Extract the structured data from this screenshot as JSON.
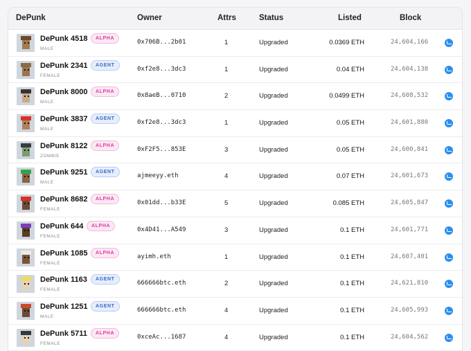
{
  "headers": {
    "punk": "DePunk",
    "owner": "Owner",
    "attrs": "Attrs",
    "status": "Status",
    "listed": "Listed",
    "block": "Block"
  },
  "badge_colors": {
    "alpha": "#d83ea1",
    "agent": "#3868c9"
  },
  "rows": [
    {
      "name": "DePunk 4518",
      "badge": "ALPHA",
      "gender": "MALE",
      "owner": "0x706B...2b01",
      "attrs": "1",
      "status": "Upgraded",
      "listed": "0.0369 ETH",
      "block": "24,604,166",
      "skin": "#a27c52",
      "hair": "#6b4a2b",
      "bg": "#cfd6dd"
    },
    {
      "name": "DePunk 2341",
      "badge": "AGENT",
      "gender": "FEMALE",
      "owner": "0xf2e8...3dc3",
      "attrs": "1",
      "status": "Upgraded",
      "listed": "0.04 ETH",
      "block": "24,604,138",
      "skin": "#9b7450",
      "hair": "#8a6a46",
      "bg": "#cfd6dd"
    },
    {
      "name": "DePunk 8000",
      "badge": "ALPHA",
      "gender": "MALE",
      "owner": "0x8aeB...0710",
      "attrs": "2",
      "status": "Upgraded",
      "listed": "0.0499 ETH",
      "block": "24,608,532",
      "skin": "#c9ab8a",
      "hair": "#333333",
      "bg": "#cfd6dd"
    },
    {
      "name": "DePunk 3837",
      "badge": "AGENT",
      "gender": "MALE",
      "owner": "0xf2e8...3dc3",
      "attrs": "1",
      "status": "Upgraded",
      "listed": "0.05 ETH",
      "block": "24,601,880",
      "skin": "#b0805a",
      "hair": "#d8322a",
      "bg": "#cfd6dd"
    },
    {
      "name": "DePunk 8122",
      "badge": "ALPHA",
      "gender": "ZOMBIE",
      "owner": "0xF2F5...853E",
      "attrs": "3",
      "status": "Upgraded",
      "listed": "0.05 ETH",
      "block": "24,600,841",
      "skin": "#7d9b74",
      "hair": "#3b3b3b",
      "bg": "#cfd6dd"
    },
    {
      "name": "DePunk 9251",
      "badge": "AGENT",
      "gender": "MALE",
      "owner": "ajmeeyy.eth",
      "attrs": "4",
      "status": "Upgraded",
      "listed": "0.07 ETH",
      "block": "24,601,673",
      "skin": "#8a6440",
      "hair": "#2fa54a",
      "bg": "#cfd6dd"
    },
    {
      "name": "DePunk 8682",
      "badge": "ALPHA",
      "gender": "FEMALE",
      "owner": "0x01dd...b33E",
      "attrs": "5",
      "status": "Upgraded",
      "listed": "0.085 ETH",
      "block": "24,605,847",
      "skin": "#6d4a33",
      "hair": "#d8322a",
      "bg": "#cfd6dd"
    },
    {
      "name": "DePunk 644",
      "badge": "ALPHA",
      "gender": "FEMALE",
      "owner": "0x4D41...A549",
      "attrs": "3",
      "status": "Upgraded",
      "listed": "0.1 ETH",
      "block": "24,601,771",
      "skin": "#5c3a24",
      "hair": "#7b3fb8",
      "bg": "#cfd6dd"
    },
    {
      "name": "DePunk 1085",
      "badge": "ALPHA",
      "gender": "FEMALE",
      "owner": "ayimh.eth",
      "attrs": "1",
      "status": "Upgraded",
      "listed": "0.1 ETH",
      "block": "24,607,401",
      "skin": "#7a5438",
      "hair": "#eaeaea",
      "bg": "#cfd6dd"
    },
    {
      "name": "DePunk 1163",
      "badge": "AGENT",
      "gender": "FEMALE",
      "owner": "666666btc.eth",
      "attrs": "2",
      "status": "Upgraded",
      "listed": "0.1 ETH",
      "block": "24,621,810",
      "skin": "#e8d2b8",
      "hair": "#f0dc5a",
      "bg": "#cfd6dd"
    },
    {
      "name": "DePunk 1251",
      "badge": "AGENT",
      "gender": "MALE",
      "owner": "666666btc.eth",
      "attrs": "4",
      "status": "Upgraded",
      "listed": "0.1 ETH",
      "block": "24,605,993",
      "skin": "#6d4a33",
      "hair": "#c94b2a",
      "bg": "#cfd6dd"
    },
    {
      "name": "DePunk 5711",
      "badge": "ALPHA",
      "gender": "FEMALE",
      "owner": "0xceAc...1687",
      "attrs": "4",
      "status": "Upgraded",
      "listed": "0.1 ETH",
      "block": "24,604,562",
      "skin": "#e6d0b6",
      "hair": "#2e3b3a",
      "bg": "#cfd6dd"
    }
  ]
}
